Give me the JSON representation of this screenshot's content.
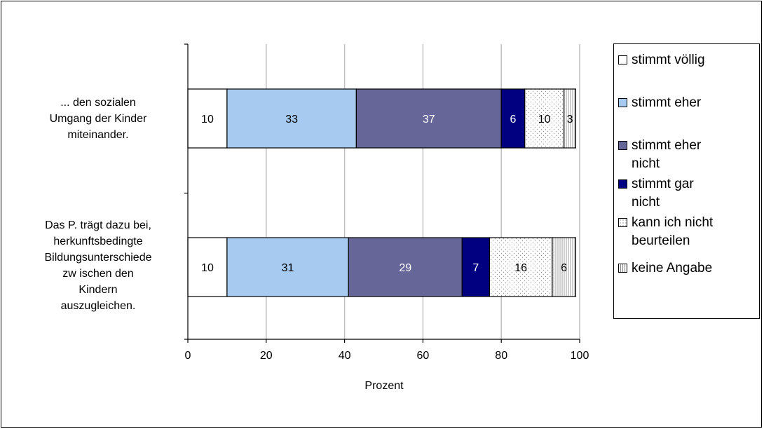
{
  "chart_data": {
    "type": "bar",
    "orientation": "horizontal",
    "stacked": true,
    "categories": [
      [
        "... den sozialen",
        "Umgang der Kinder",
        "miteinander."
      ],
      [
        "Das P. trägt dazu bei,",
        "herkunftsbedingte",
        "Bildungsunterschiede",
        "zw ischen den",
        "Kindern",
        "auszugleichen."
      ]
    ],
    "series": [
      {
        "name": [
          "stimmt völlig"
        ],
        "values": [
          10,
          10
        ],
        "labels": [
          "10",
          "10"
        ],
        "color": "#ffffff",
        "label_color": "#000000"
      },
      {
        "name": [
          "stimmt eher"
        ],
        "values": [
          33,
          31
        ],
        "labels": [
          "33",
          "31"
        ],
        "color": "#a6caf0",
        "label_color": "#000000"
      },
      {
        "name": [
          "stimmt eher",
          "nicht"
        ],
        "values": [
          37,
          29
        ],
        "labels": [
          "37",
          "29"
        ],
        "color": "#666699",
        "label_color": "#ffffff"
      },
      {
        "name": [
          "stimmt gar",
          "nicht"
        ],
        "values": [
          6,
          7
        ],
        "labels": [
          "6",
          "7"
        ],
        "color": "#000080",
        "label_color": "#ffffff"
      },
      {
        "name": [
          "kann ich nicht",
          "beurteilen"
        ],
        "values": [
          10,
          16
        ],
        "labels": [
          "10",
          "16"
        ],
        "color": "#ffffff",
        "pattern": "dots",
        "label_color": "#000000"
      },
      {
        "name": [
          "keine Angabe"
        ],
        "values": [
          3,
          6
        ],
        "labels": [
          "3",
          "6"
        ],
        "color": "#ffffff",
        "pattern": "vlines",
        "label_color": "#000000"
      }
    ],
    "xlabel": "Prozent",
    "xlim": [
      0,
      100
    ],
    "xticks": [
      "0",
      "20",
      "40",
      "60",
      "80",
      "100"
    ],
    "grid": true,
    "legend_position": "right"
  }
}
